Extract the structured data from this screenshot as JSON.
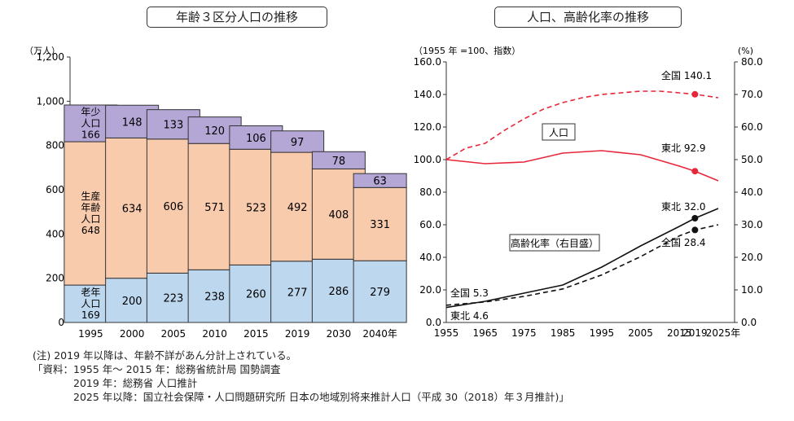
{
  "chart_data": [
    {
      "type": "bar",
      "title": "年齢３区分人口の推移",
      "unit": "（万人）",
      "categories": [
        "1995",
        "2000",
        "2005",
        "2010",
        "2015",
        "2019",
        "2030",
        "2040年"
      ],
      "ylim": [
        0,
        1200
      ],
      "yticks": [
        "0",
        "200",
        "400",
        "600",
        "800",
        "1,000",
        "1,200"
      ],
      "series": [
        {
          "name": "老年人口",
          "color": "#bdd7ee",
          "values": [
            169,
            200,
            223,
            238,
            260,
            277,
            286,
            279
          ]
        },
        {
          "name": "生産年齢人口",
          "color": "#f8cbad",
          "values": [
            648,
            634,
            606,
            571,
            523,
            492,
            408,
            331
          ]
        },
        {
          "name": "年少人口",
          "color": "#b4a7d6",
          "values": [
            166,
            148,
            133,
            120,
            106,
            97,
            78,
            63
          ]
        }
      ],
      "inline_labels": {
        "young": [
          "年少",
          "人口",
          "166"
        ],
        "working": [
          "生産",
          "年齢",
          "人口",
          "648"
        ],
        "old": [
          "老年",
          "人口",
          "169"
        ]
      }
    },
    {
      "type": "line",
      "title": "人口、高齢化率の推移",
      "left_axis_label": "（1955 年 =100、指数）",
      "right_axis_label": "(%)",
      "x": [
        1955,
        1965,
        1975,
        1985,
        1995,
        2005,
        2015,
        2019,
        2025
      ],
      "xticks": [
        "1955",
        "1965",
        "1975",
        "1985",
        "1995",
        "2005",
        "2015",
        "2019",
        "2025年"
      ],
      "left_ylim": [
        0,
        160
      ],
      "left_yticks": [
        "0.0",
        "20.0",
        "40.0",
        "60.0",
        "80.0",
        "100.0",
        "120.0",
        "140.0",
        "160.0"
      ],
      "right_ylim": [
        0,
        80
      ],
      "right_yticks": [
        "0.0",
        "10.0",
        "20.0",
        "30.0",
        "40.0",
        "50.0",
        "60.0",
        "70.0",
        "80.0"
      ],
      "series": [
        {
          "name": "全国",
          "group": "人口",
          "axis": "left",
          "color": "#e8263a",
          "dashed": true,
          "x": [
            1955,
            1960,
            1965,
            1970,
            1975,
            1980,
            1985,
            1990,
            1995,
            2000,
            2005,
            2010,
            2015,
            2019,
            2025
          ],
          "values": [
            100,
            107,
            110,
            118,
            125,
            131,
            135,
            138,
            140,
            141,
            142,
            142,
            141,
            140.1,
            138
          ]
        },
        {
          "name": "東北",
          "group": "人口",
          "axis": "left",
          "color": "#e8263a",
          "dashed": false,
          "x": [
            1955,
            1965,
            1975,
            1985,
            1995,
            2005,
            2015,
            2019,
            2025
          ],
          "values": [
            100,
            97.5,
            98.5,
            104,
            105.5,
            103,
            96,
            92.9,
            87
          ]
        },
        {
          "name": "東北",
          "group": "高齢化率",
          "axis": "right",
          "color": "#111111",
          "dashed": false,
          "x": [
            1955,
            1965,
            1975,
            1985,
            1995,
            2005,
            2015,
            2019,
            2025
          ],
          "values": [
            4.6,
            6.5,
            9,
            11.5,
            17,
            23.5,
            29.5,
            32.0,
            35
          ]
        },
        {
          "name": "全国",
          "group": "高齢化率",
          "axis": "right",
          "color": "#111111",
          "dashed": true,
          "x": [
            1955,
            1965,
            1975,
            1985,
            1995,
            2005,
            2015,
            2019,
            2025
          ],
          "values": [
            5.3,
            6.3,
            8,
            10.3,
            14.6,
            20.2,
            26.6,
            28.4,
            30
          ]
        }
      ],
      "annotations": {
        "pop_national": "全国 140.1",
        "pop_tohoku": "東北 92.9",
        "aging_tohoku": "東北 32.0",
        "aging_national": "全国 28.4",
        "start_national": "全国 5.3",
        "start_tohoku": "東北 4.6",
        "box_pop": "人口",
        "box_aging": "高齢化率（右目盛）"
      }
    }
  ],
  "notes": [
    "(注) 2019 年以降は、年齢不詳があん分計上されている。",
    "「資料：1955 年～ 2015 年：総務省統計局 国勢調査",
    "　　　　2019 年：総務省 人口推計",
    "　　　　2025 年以降：国立社会保障・人口問題研究所 日本の地域別将来推計人口（平成 30（2018）年３月推計)」"
  ]
}
